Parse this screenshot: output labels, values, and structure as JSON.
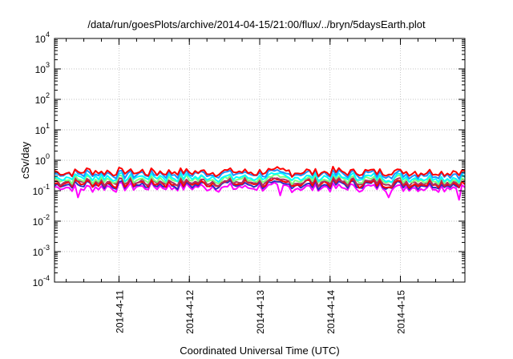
{
  "chart_data": {
    "type": "line",
    "title": "/data/run/goesPlots/archive/2014-04-15/21:00/flux/../bryn/5daysEarth.plot",
    "xlabel": "Coordinated Universal Time (UTC)",
    "ylabel": "cSv/day",
    "x_range": [
      "2014-04-10 02:00",
      "2014-04-15 22:00"
    ],
    "x_ticks": [
      "2014-4-11",
      "2014-4-12",
      "2014-4-13",
      "2014-4-14",
      "2014-4-15"
    ],
    "y_scale": "log",
    "ylim": [
      0.0001,
      10000
    ],
    "y_ticks": [
      {
        "base": "10",
        "exp": "-4"
      },
      {
        "base": "10",
        "exp": "-3"
      },
      {
        "base": "10",
        "exp": "-2"
      },
      {
        "base": "10",
        "exp": "-1"
      },
      {
        "base": "10",
        "exp": "0"
      },
      {
        "base": "10",
        "exp": "1"
      },
      {
        "base": "10",
        "exp": "2"
      },
      {
        "base": "10",
        "exp": "3"
      },
      {
        "base": "10",
        "exp": "4"
      }
    ],
    "grid": true,
    "series": [
      {
        "color": "#ff00ff",
        "level": 0.13,
        "dips": [
          [
            "2014-04-10 10:00",
            0.06
          ],
          [
            "2014-04-13 07:00",
            0.07
          ],
          [
            "2014-04-14 20:00",
            0.06
          ],
          [
            "2014-04-15 20:00",
            0.05
          ]
        ]
      },
      {
        "color": "#2f2fbf",
        "level": 0.16,
        "dips": []
      },
      {
        "color": "#ff0000",
        "level": 0.18,
        "dips": []
      },
      {
        "color": "#b03060",
        "level": 0.2,
        "dips": []
      },
      {
        "color": "#7fff7f",
        "level": 0.24,
        "dips": []
      },
      {
        "color": "#00ffff",
        "level": 0.28,
        "dips": []
      },
      {
        "color": "#1e90ff",
        "level": 0.36,
        "dips": []
      },
      {
        "color": "#ff0000",
        "level": 0.42,
        "dips": []
      }
    ]
  }
}
